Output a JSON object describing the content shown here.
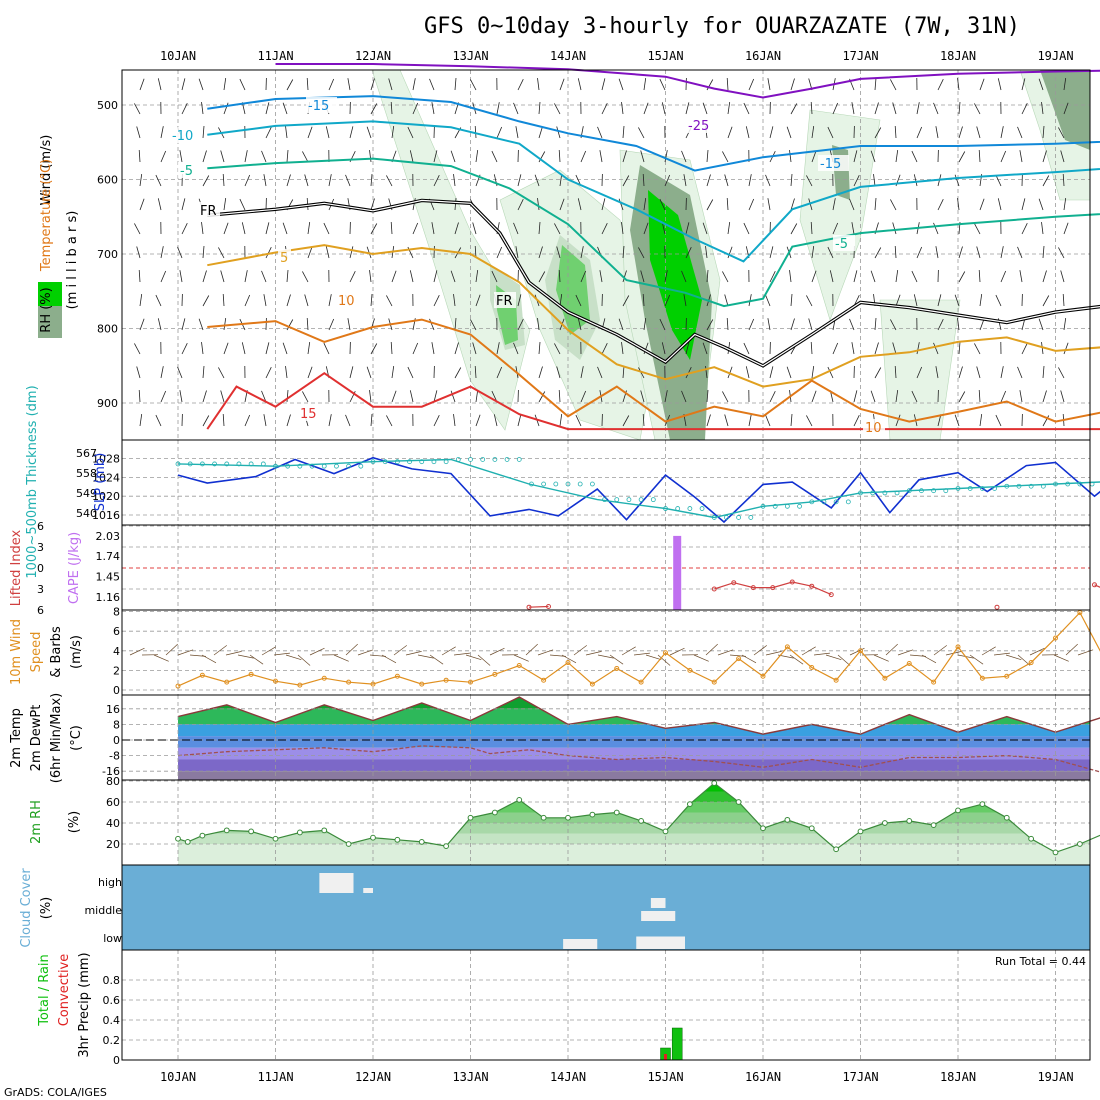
{
  "title": "GFS 0~10day 3-hourly for OUARZAZATE (7W, 31N)",
  "footer": "GrADS: COLA/IGES",
  "dates": [
    "10JAN",
    "11JAN",
    "12JAN",
    "13JAN",
    "14JAN",
    "15JAN",
    "16JAN",
    "17JAN",
    "18JAN",
    "19JAN"
  ],
  "colors": {
    "temp15": "#e03030",
    "temp10": "#e07818",
    "temp5": "#e0a020",
    "fr": "#000000",
    "c5": "#10b090",
    "c10": "#10a8c8",
    "c15": "#1088d8",
    "c25": "#8010c0",
    "rh_light": "#e6f4e6",
    "rh_mid": "#c8e0c8",
    "rh_dark": "#8cae8c",
    "rh_green": "#00d000",
    "slp": "#1030d0",
    "thick": "#20b0b0",
    "cape": "#c070f0",
    "li": "#d04040",
    "wind": "#e09020",
    "cloud": "#6aaed6",
    "precip": "#10c010",
    "conv": "#e02020",
    "rh2m": "#20a020"
  },
  "chart_data": [
    {
      "type": "line",
      "panel": "upper_air",
      "ylabel_parts": [
        "RH (%)",
        "Temperature (°C)",
        "Wind (m/s)"
      ],
      "ylabel_units": "(m i l l i b a r s)",
      "yticks": [
        500,
        600,
        700,
        800,
        900
      ],
      "ylim": [
        950,
        450
      ],
      "contour_labels": [
        "-25",
        "-15",
        "-15",
        "-10",
        "-5",
        "-5",
        "FR",
        "FR",
        "5",
        "10",
        "15",
        "10"
      ],
      "series": [
        {
          "label": "-25",
          "color": "c25",
          "x": [
            1,
            2,
            3,
            4,
            5,
            5.5,
            6,
            6.5,
            7,
            8,
            9,
            10.3
          ],
          "y": [
            445,
            445,
            448,
            452,
            462,
            478,
            490,
            478,
            465,
            458,
            455,
            452
          ]
        },
        {
          "label": "-15",
          "color": "c15",
          "x": [
            0.3,
            1,
            2,
            2.8,
            3.5,
            4,
            4.7,
            5.3,
            6,
            7,
            8,
            9,
            10.3
          ],
          "y": [
            505,
            492,
            488,
            496,
            522,
            538,
            555,
            588,
            570,
            555,
            555,
            552,
            545
          ]
        },
        {
          "label": "-10",
          "color": "c10",
          "x": [
            0.3,
            1,
            2,
            2.8,
            3.5,
            4,
            4.7,
            5.3,
            5.8,
            6.3,
            7,
            8,
            9,
            10.3
          ],
          "y": [
            540,
            528,
            522,
            530,
            552,
            600,
            640,
            680,
            710,
            640,
            610,
            598,
            590,
            578
          ]
        },
        {
          "label": "-5",
          "color": "c5",
          "x": [
            0.3,
            1,
            2,
            2.8,
            3.4,
            4,
            4.6,
            5.2,
            5.6,
            6,
            6.3,
            7,
            8,
            9,
            10.3
          ],
          "y": [
            585,
            578,
            572,
            582,
            612,
            660,
            735,
            752,
            770,
            760,
            690,
            672,
            660,
            650,
            640
          ]
        },
        {
          "label": "FR",
          "color": "fr",
          "x": [
            0.3,
            1,
            1.5,
            2,
            2.5,
            3,
            3.3,
            3.6,
            4,
            4.5,
            5,
            5.3,
            5.6,
            6,
            6.5,
            7,
            7.5,
            8,
            8.5,
            9,
            9.5,
            10.3
          ],
          "y": [
            648,
            640,
            632,
            642,
            628,
            632,
            672,
            738,
            778,
            808,
            845,
            808,
            825,
            850,
            808,
            765,
            772,
            782,
            792,
            778,
            770,
            738
          ]
        },
        {
          "label": "5",
          "color": "temp5",
          "x": [
            0.3,
            1,
            1.5,
            2,
            2.5,
            3,
            3.5,
            4,
            4.5,
            5,
            5.5,
            6,
            6.5,
            7,
            7.5,
            8,
            8.5,
            9,
            9.5,
            10.3
          ],
          "y": [
            715,
            698,
            688,
            700,
            692,
            700,
            738,
            802,
            848,
            868,
            852,
            878,
            868,
            838,
            832,
            818,
            812,
            830,
            825,
            820
          ]
        },
        {
          "label": "10",
          "color": "temp10",
          "x": [
            0.3,
            1,
            1.5,
            2,
            2.5,
            3,
            3.5,
            4,
            4.5,
            5,
            5.5,
            6,
            6.5,
            7,
            7.5,
            8,
            8.5,
            9,
            9.5,
            10.3
          ],
          "y": [
            798,
            790,
            818,
            798,
            788,
            808,
            862,
            918,
            878,
            925,
            905,
            918,
            870,
            908,
            925,
            912,
            898,
            925,
            912,
            918
          ]
        },
        {
          "label": "15",
          "color": "temp15",
          "x": [
            0.3,
            0.6,
            1,
            1.5,
            2,
            2.5,
            3,
            3.5,
            4,
            10.3
          ],
          "y": [
            935,
            878,
            905,
            860,
            905,
            905,
            878,
            915,
            935,
            935
          ]
        }
      ]
    },
    {
      "type": "line",
      "panel": "slp_thickness",
      "ylabel_left": "1000~500mb Thickness (dm)",
      "ylabel_right": "SLP (mb)",
      "yticks_left": [
        540,
        549,
        558,
        567
      ],
      "yticks_right": [
        1016,
        1020,
        1024,
        1028
      ],
      "series": [
        {
          "name": "SLP (mb)",
          "color": "slp",
          "x": [
            0,
            0.3,
            0.8,
            1.2,
            1.6,
            2.0,
            2.4,
            2.8,
            3.2,
            3.6,
            3.9,
            4.3,
            4.6,
            5.0,
            5.3,
            5.6,
            6.0,
            6.3,
            6.7,
            7.0,
            7.3,
            7.6,
            8.0,
            8.3,
            8.7,
            9.0,
            9.4,
            9.7,
            10.0,
            10.3
          ],
          "y": [
            1024.5,
            1022.8,
            1024.2,
            1027.8,
            1024.8,
            1028.2,
            1025.8,
            1024.8,
            1015.8,
            1017.2,
            1015.8,
            1021.5,
            1015.0,
            1024.5,
            1019.8,
            1014.5,
            1022.5,
            1023.0,
            1017.5,
            1025.0,
            1016.5,
            1023.5,
            1025.0,
            1021.0,
            1026.5,
            1027.2,
            1020.0,
            1025.0,
            1025.8,
            1022.8
          ]
        },
        {
          "name": "1000~500mb Thickness (dm)",
          "color": "thick",
          "x": [
            0,
            1,
            2,
            2.8,
            3.6,
            4.3,
            5.0,
            5.5,
            6.0,
            6.5,
            7.0,
            7.5,
            8.0,
            8.5,
            9.0,
            9.5,
            10.0,
            10.3
          ],
          "y": [
            562,
            561,
            563,
            564,
            553,
            546,
            542,
            538,
            543,
            545,
            549,
            550,
            551,
            552,
            553,
            554,
            556,
            556
          ]
        }
      ]
    },
    {
      "type": "bar",
      "panel": "cape_li",
      "ylabel_left": "Lifted Index",
      "ylabel_right": "CAPE (J/kg)",
      "yticks_left": [
        -6,
        -3,
        0,
        3,
        6
      ],
      "yticks_right": [
        1.16,
        1.45,
        1.74,
        2.03
      ],
      "cape": {
        "x": [
          5.12
        ],
        "values": [
          2.03
        ]
      },
      "lifted_index": {
        "x": [
          3.6,
          3.8,
          5.5,
          5.7,
          5.9,
          6.1,
          6.3,
          6.5,
          6.7,
          8.4,
          9.4,
          9.6,
          9.8
        ],
        "y": [
          5.6,
          5.5,
          3.0,
          2.1,
          2.8,
          2.8,
          2.0,
          2.6,
          3.8,
          5.6,
          2.4,
          3.6,
          5.8
        ]
      }
    },
    {
      "type": "line",
      "panel": "wind10m",
      "ylabel": "10m Wind Speed & Barbs (m/s)",
      "yticks": [
        0,
        2,
        4,
        6,
        8
      ],
      "ylim": [
        0,
        8
      ],
      "series": [
        {
          "name": "Speed",
          "color": "wind",
          "x": [
            0,
            0.25,
            0.5,
            0.75,
            1,
            1.25,
            1.5,
            1.75,
            2,
            2.25,
            2.5,
            2.75,
            3,
            3.25,
            3.5,
            3.75,
            4,
            4.25,
            4.5,
            4.75,
            5,
            5.25,
            5.5,
            5.75,
            6,
            6.25,
            6.5,
            6.75,
            7,
            7.25,
            7.5,
            7.75,
            8,
            8.25,
            8.5,
            8.75,
            9,
            9.25,
            9.5,
            9.75,
            10,
            10.3
          ],
          "y": [
            0.4,
            1.5,
            0.8,
            1.6,
            0.9,
            0.5,
            1.2,
            0.8,
            0.6,
            1.4,
            0.6,
            1.0,
            0.8,
            1.6,
            2.5,
            1.0,
            2.8,
            0.6,
            2.2,
            0.8,
            3.8,
            2.0,
            0.8,
            3.2,
            1.4,
            4.4,
            2.3,
            1.0,
            4.0,
            1.2,
            2.7,
            0.8,
            4.4,
            1.2,
            1.4,
            2.8,
            5.3,
            7.9,
            3.2,
            3.5,
            4.0,
            0.6
          ]
        }
      ]
    },
    {
      "type": "area",
      "panel": "temp2m",
      "ylabel": "2m Temp 2m DewPt (6hr Min/Max) (°C)",
      "yticks": [
        -16,
        -8,
        0,
        8,
        16
      ],
      "ylim": [
        -22,
        24
      ],
      "temperature": {
        "x": [
          0,
          0.5,
          1,
          1.5,
          2,
          2.5,
          3,
          3.5,
          4,
          4.5,
          5,
          5.5,
          6,
          6.5,
          7,
          7.5,
          8,
          8.5,
          9,
          9.5,
          10,
          10.3
        ],
        "y": [
          12,
          18,
          9,
          18,
          10,
          19,
          10,
          22,
          8,
          12,
          6,
          9,
          3,
          8,
          3,
          13,
          4,
          12,
          4,
          12,
          6,
          5
        ]
      },
      "dewpoint": {
        "x": [
          0,
          0.5,
          1,
          1.5,
          2,
          2.5,
          3,
          3.2,
          3.6,
          4,
          4.5,
          5,
          5.5,
          6,
          6.5,
          7,
          7.5,
          8,
          8.5,
          9,
          9.5,
          10,
          10.3
        ],
        "y": [
          -8,
          -6,
          -5,
          -4,
          -6,
          -3,
          -4,
          -7,
          -5,
          -8,
          -10,
          -9,
          -11,
          -14,
          -10,
          -14,
          -9,
          -9,
          -8,
          -10,
          -17,
          -10,
          -12
        ]
      }
    },
    {
      "type": "area",
      "panel": "rh2m",
      "ylabel": "2m RH (%)",
      "yticks": [
        20,
        40,
        60,
        80
      ],
      "ylim": [
        0,
        85
      ],
      "series": [
        {
          "name": "2m RH",
          "color": "rh2m",
          "x": [
            0,
            0.1,
            0.25,
            0.5,
            0.75,
            1,
            1.25,
            1.5,
            1.75,
            2,
            2.25,
            2.5,
            2.75,
            3,
            3.25,
            3.5,
            3.75,
            4,
            4.25,
            4.5,
            4.75,
            5,
            5.25,
            5.5,
            5.75,
            6,
            6.25,
            6.5,
            6.75,
            7,
            7.25,
            7.5,
            7.75,
            8,
            8.25,
            8.5,
            8.75,
            9,
            9.25,
            9.5,
            9.75,
            10,
            10.3
          ],
          "y": [
            25,
            22,
            28,
            33,
            32,
            25,
            31,
            33,
            20,
            26,
            24,
            22,
            18,
            45,
            50,
            62,
            45,
            45,
            48,
            50,
            42,
            32,
            58,
            78,
            60,
            35,
            43,
            35,
            15,
            32,
            40,
            42,
            38,
            52,
            58,
            45,
            25,
            12,
            20,
            30,
            38,
            36,
            35
          ]
        }
      ]
    },
    {
      "type": "heatmap",
      "panel": "cloud",
      "ylabel": "Cloud Cover (%)",
      "rows": [
        "high",
        "middle",
        "low"
      ],
      "blocks": [
        {
          "level": "high",
          "x0": 1.45,
          "x1": 1.8,
          "value": 80
        },
        {
          "level": "high",
          "x0": 1.9,
          "x1": 2.0,
          "value": 20
        },
        {
          "level": "middle",
          "x0": 4.75,
          "x1": 5.1,
          "value": 40
        },
        {
          "level": "low",
          "x0": 3.95,
          "x1": 4.3,
          "value": 40
        },
        {
          "level": "low",
          "x0": 4.7,
          "x1": 5.2,
          "value": 50
        }
      ]
    },
    {
      "type": "bar",
      "panel": "precip",
      "ylabel_parts": [
        "Total / Rain",
        "Convective",
        "3hr Precip (mm)"
      ],
      "yticks": [
        0,
        0.2,
        0.4,
        0.6,
        0.8
      ],
      "ylim": [
        0,
        1.0
      ],
      "run_total": "Run Total = 0.44",
      "total": {
        "x": [
          5.0,
          5.12
        ],
        "values": [
          0.12,
          0.32
        ]
      },
      "convective": {
        "x": [
          5.0
        ],
        "values": [
          0.06
        ]
      }
    }
  ]
}
